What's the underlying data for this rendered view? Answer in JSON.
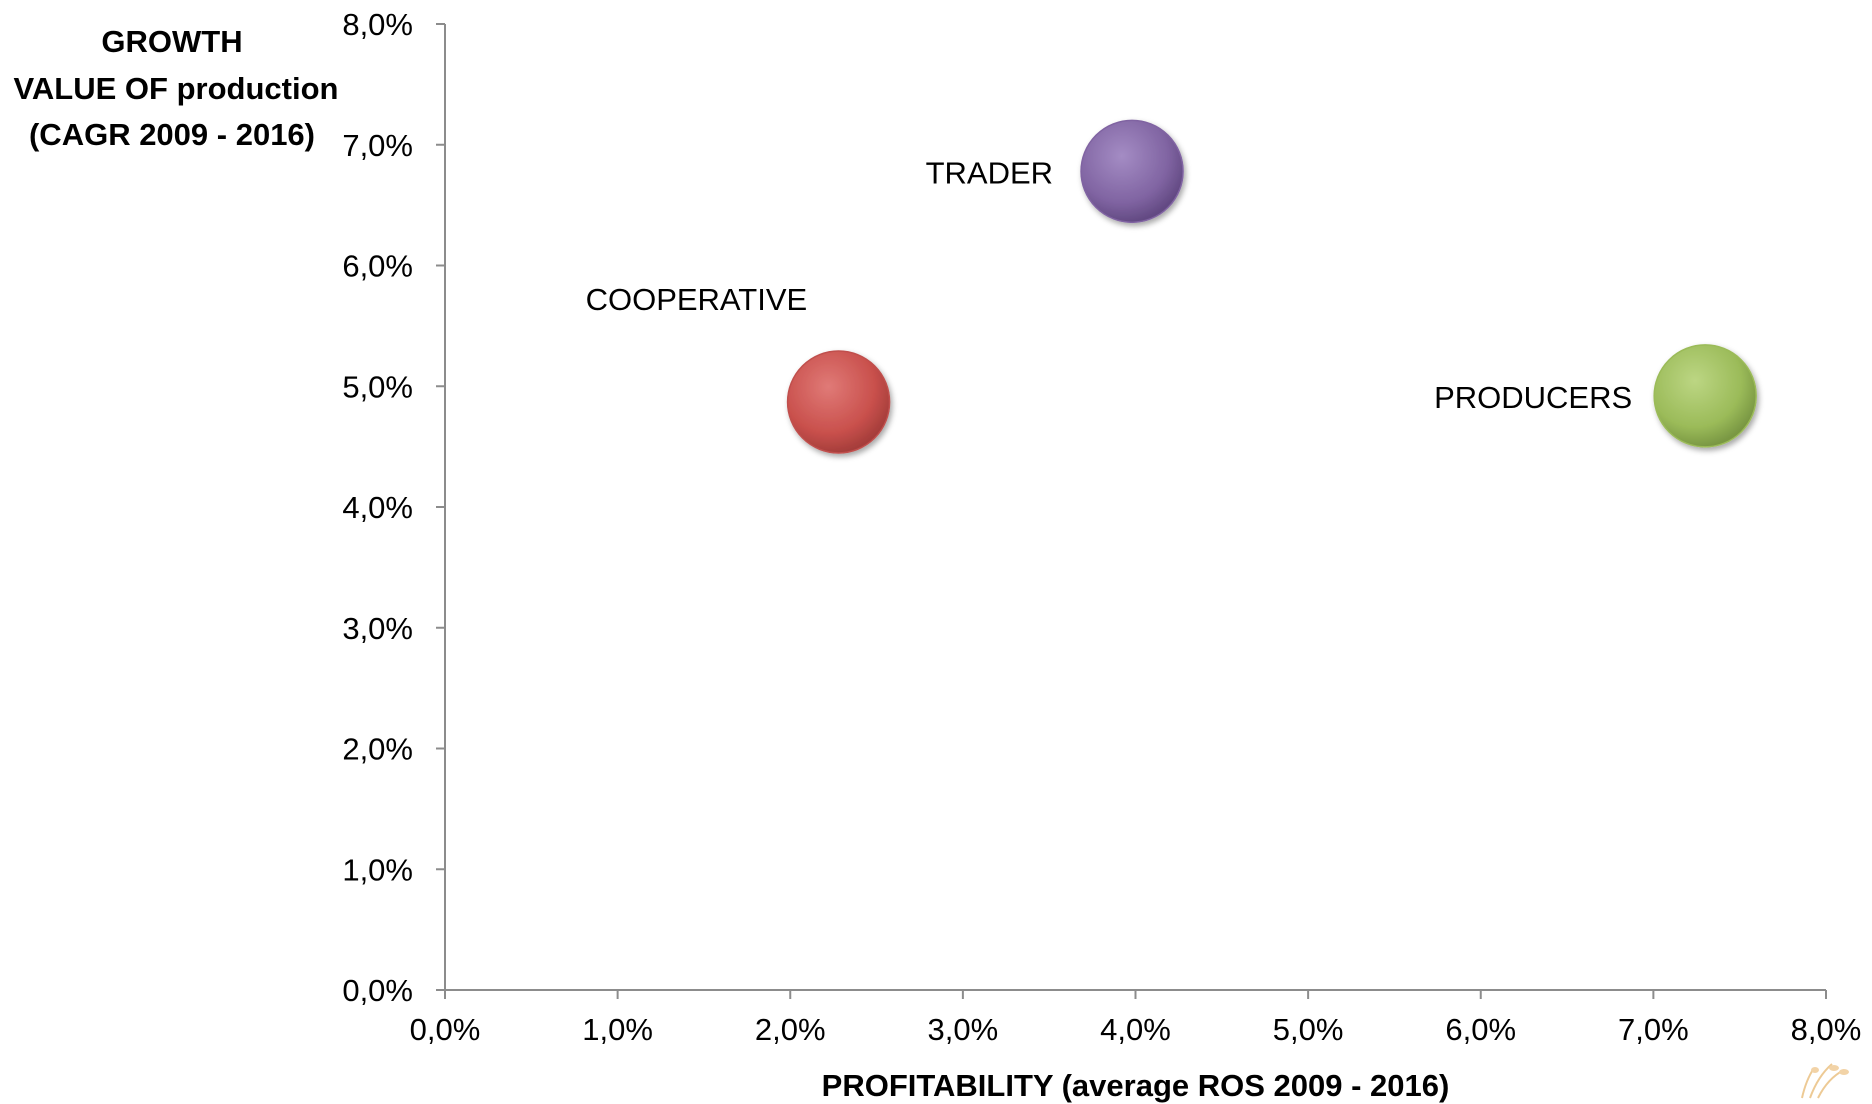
{
  "chart_data": {
    "type": "scatter",
    "xlabel": "PROFITABILITY (average ROS 2009 - 2016)",
    "ylabel_lines": [
      "GROWTH",
      "VALUE OF production",
      "(CAGR 2009 - 2016)"
    ],
    "xlim": [
      0,
      8
    ],
    "ylim": [
      0,
      8
    ],
    "x_ticks": [
      "0,0%",
      "1,0%",
      "2,0%",
      "3,0%",
      "4,0%",
      "5,0%",
      "6,0%",
      "7,0%",
      "8,0%"
    ],
    "y_ticks": [
      "0,0%",
      "1,0%",
      "2,0%",
      "3,0%",
      "4,0%",
      "5,0%",
      "6,0%",
      "7,0%",
      "8,0%"
    ],
    "grid": false,
    "points": [
      {
        "label": "COOPERATIVE",
        "x": 2.28,
        "y": 4.87,
        "color": "#c0504d"
      },
      {
        "label": "TRADER",
        "x": 3.98,
        "y": 6.78,
        "color": "#8064a2"
      },
      {
        "label": "PRODUCERS",
        "x": 7.3,
        "y": 4.92,
        "color": "#9bbb59"
      }
    ]
  }
}
